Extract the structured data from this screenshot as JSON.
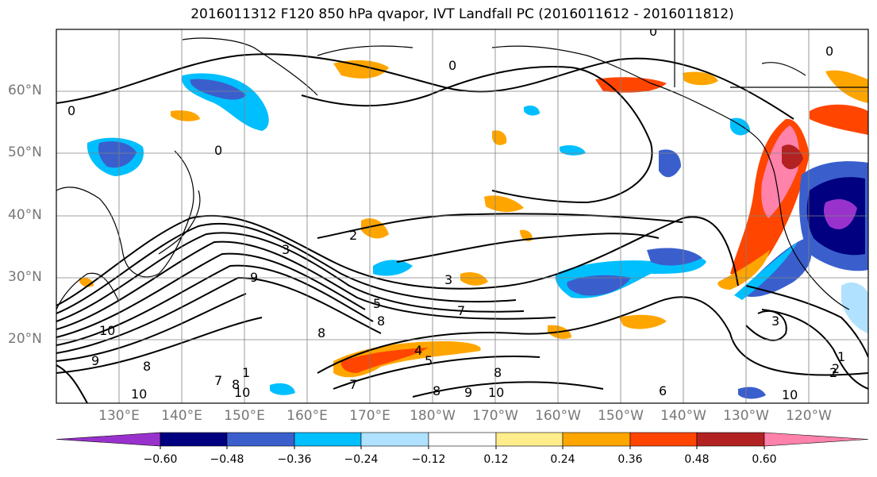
{
  "title": "2016011312 F120 850 hPa qvapor, IVT Landfall PC (2016011612 - 2016011812)",
  "lat_labels": [
    "60°N",
    "50°N",
    "40°N",
    "30°N",
    "20°N"
  ],
  "lon_labels": [
    "130°E",
    "140°E",
    "150°E",
    "160°E",
    "170°E",
    "180°W",
    "170°W",
    "160°W",
    "150°W",
    "140°W",
    "130°W",
    "120°W"
  ],
  "contour_labels": [
    "0",
    "0",
    "0",
    "0",
    "0",
    "2",
    "3",
    "3",
    "9",
    "7",
    "5",
    "8",
    "8",
    "10",
    "9",
    "8",
    "10",
    "8",
    "1",
    "7",
    "10",
    "9",
    "8",
    "2",
    "3",
    "10",
    "8",
    "7",
    "6",
    "5",
    "4",
    "1",
    "2",
    "10"
  ],
  "colorbar": {
    "ticks": [
      "−0.60",
      "−0.48",
      "−0.36",
      "−0.24",
      "−0.12",
      "0.12",
      "0.24",
      "0.36",
      "0.48",
      "0.60"
    ],
    "colors": [
      "#9932cc",
      "#000080",
      "#3a5fcd",
      "#00bfff",
      "#b0e2ff",
      "#ffffff",
      "#ffec8b",
      "#ffa500",
      "#ff4500",
      "#b22222",
      "#ff82ab"
    ]
  },
  "colors": {
    "coastline": "#000000",
    "grid": "#808080",
    "labels": "#777777"
  }
}
